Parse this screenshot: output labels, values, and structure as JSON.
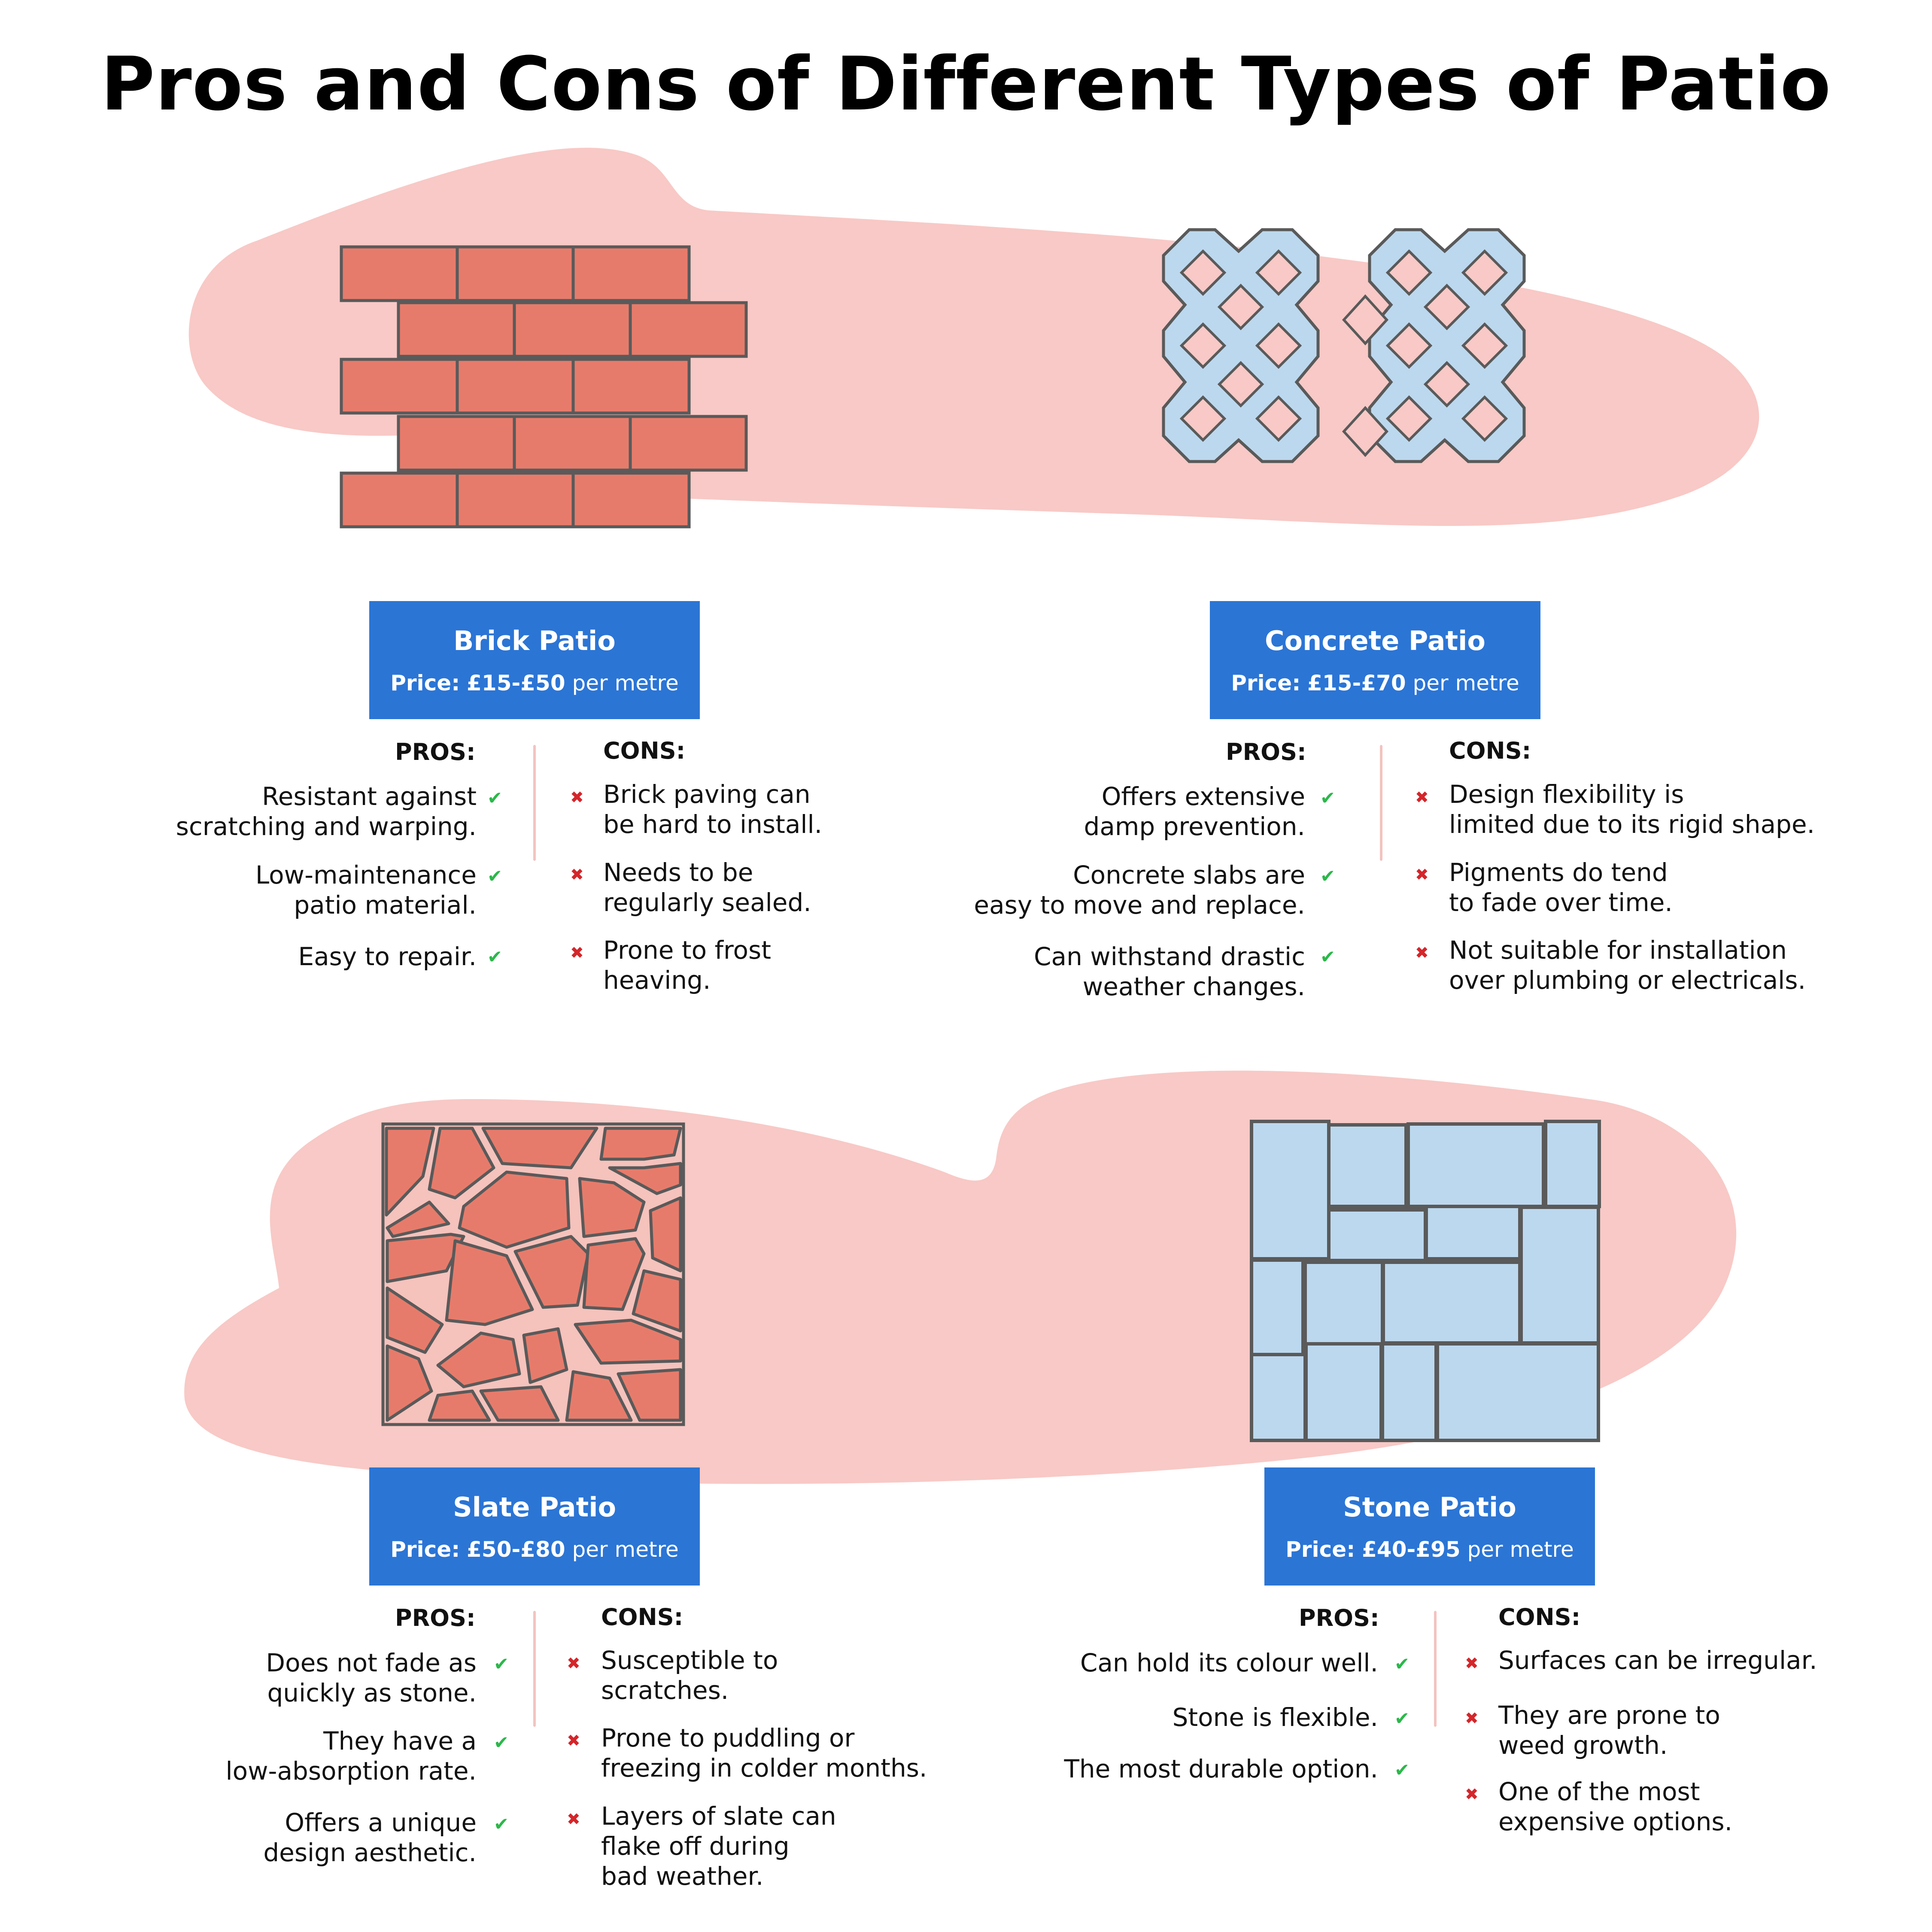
{
  "title": "Pros and Cons of Different Types of Patio",
  "colors": {
    "blob": "#f8c9c6",
    "brick": "#e77b6b",
    "concrete": "#bcd8ee",
    "outline": "#5a5a5a",
    "label": "#2b75d5",
    "tick": "#2bb84a",
    "cross": "#d4262b"
  },
  "labels": {
    "pros": "PROS:",
    "cons": "CONS:"
  },
  "patios": [
    {
      "name": "Brick Patio",
      "price_label": "Price:",
      "price_range": "£15-£50",
      "price_unit": "per metre",
      "pros": [
        "Resistant against\nscratching and warping.",
        "Low-maintenance\npatio material.",
        "Easy to repair."
      ],
      "cons": [
        "Brick paving can\nbe hard to install.",
        "Needs to be\nregularly sealed.",
        "Prone to frost\nheaving."
      ]
    },
    {
      "name": "Concrete Patio",
      "price_label": "Price:",
      "price_range": "£15-£70",
      "price_unit": "per metre",
      "pros": [
        "Offers extensive\ndamp prevention.",
        "Concrete slabs are\neasy to move and replace.",
        "Can withstand drastic\nweather changes."
      ],
      "cons": [
        "Design flexibility is\nlimited due to its rigid shape.",
        "Pigments do tend\nto fade over time.",
        "Not suitable for installation\nover plumbing or electricals."
      ]
    },
    {
      "name": "Slate Patio",
      "price_label": "Price:",
      "price_range": "£50-£80",
      "price_unit": "per metre",
      "pros": [
        "Does not fade as\nquickly as stone.",
        "They have a\nlow-absorption rate.",
        "Offers a unique\ndesign aesthetic."
      ],
      "cons": [
        "Susceptible to\nscratches.",
        "Prone to puddling or\nfreezing in colder months.",
        "Layers of slate can\nflake off during\nbad weather."
      ]
    },
    {
      "name": "Stone Patio",
      "price_label": "Price:",
      "price_range": "£40-£95",
      "price_unit": "per metre",
      "pros": [
        "Can hold its colour well.",
        "Stone is flexible.",
        "The most durable option."
      ],
      "cons": [
        "Surfaces can be irregular.",
        "They are prone to\nweed growth.",
        "One of the most\nexpensive options."
      ]
    }
  ]
}
